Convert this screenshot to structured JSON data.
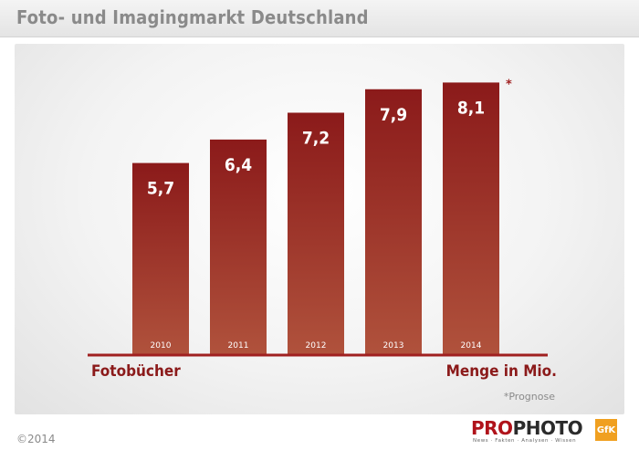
{
  "header": {
    "title": "Foto- und Imagingmarkt Deutschland"
  },
  "chart_data": {
    "type": "bar",
    "title": "Foto- und Imagingmarkt Deutschland",
    "categories": [
      "2010",
      "2011",
      "2012",
      "2013",
      "2014"
    ],
    "values": [
      5.7,
      6.4,
      7.2,
      7.9,
      8.1
    ],
    "value_labels": [
      "5,7",
      "6,4",
      "7,2",
      "7,9",
      "8,1"
    ],
    "xlabel": "Fotobücher",
    "ylabel": "Menge in Mio.",
    "forecast_marker": "*",
    "ylim": [
      0,
      9.2
    ],
    "grid": false,
    "bar_color": "#8b1a1a",
    "bar_color_bottom": "#b0523c"
  },
  "footer": {
    "left_label": "Fotobücher",
    "right_label": "Menge in Mio.",
    "footnote": "*Prognose",
    "copyright": "©2014",
    "logo_pro": "PRO",
    "logo_photo": "PHOTO",
    "logo_tagline": "News · Fakten · Analysen · Wissen",
    "gfk": "GfK"
  },
  "colors": {
    "accent": "#8b1a1a",
    "axis": "#a02020",
    "title_gray": "#8a8a8a"
  }
}
